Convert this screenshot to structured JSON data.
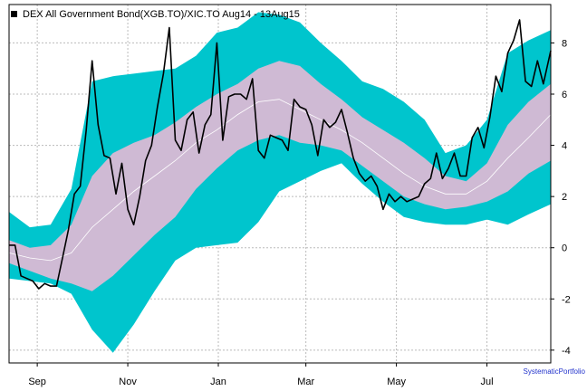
{
  "chart_data": {
    "type": "line",
    "title": "DEX All Government Bond(XGB.TO)/XIC.TO Aug14 - 13Aug15",
    "xlabel": "",
    "ylabel": "",
    "ylim": [
      -4.5,
      9.5
    ],
    "yticks": [
      -4,
      -2,
      0,
      2,
      4,
      6,
      8
    ],
    "x_tick_labels": [
      "Sep",
      "Nov",
      "Jan",
      "Mar",
      "May",
      "Jul"
    ],
    "x_tick_dates": [
      "2014-09-01",
      "2014-11-01",
      "2015-01-01",
      "2015-03-01",
      "2015-05-01",
      "2015-07-01"
    ],
    "xlim": [
      "2014-08-13",
      "2015-08-13"
    ],
    "grid": true,
    "legend_position": "top-left",
    "colors": {
      "outer_band": "#00c5cd",
      "inner_band": "#cfbad4",
      "mean_line": "#ffffff",
      "price_line": "#000000",
      "grid": "#bbbbbb",
      "watermark": "#2233cc"
    },
    "band_dates": [
      "2014-08-13",
      "2014-08-27",
      "2014-09-10",
      "2014-09-24",
      "2014-10-08",
      "2014-10-22",
      "2014-11-05",
      "2014-11-19",
      "2014-12-03",
      "2014-12-17",
      "2014-12-31",
      "2015-01-14",
      "2015-01-28",
      "2015-02-11",
      "2015-02-25",
      "2015-03-11",
      "2015-03-25",
      "2015-04-08",
      "2015-04-22",
      "2015-05-06",
      "2015-05-20",
      "2015-06-03",
      "2015-06-17",
      "2015-07-01",
      "2015-07-15",
      "2015-07-29",
      "2015-08-13"
    ],
    "bands": {
      "outer_upper": [
        1.4,
        0.8,
        0.9,
        2.3,
        6.5,
        6.7,
        6.8,
        6.9,
        7.0,
        7.5,
        8.4,
        8.6,
        9.2,
        9.1,
        8.8,
        8.0,
        7.3,
        6.5,
        6.2,
        5.7,
        5.0,
        3.7,
        4.0,
        5.0,
        7.6,
        8.1,
        8.5
      ],
      "inner_upper": [
        0.3,
        0.0,
        0.1,
        0.9,
        2.8,
        3.7,
        4.1,
        4.4,
        4.9,
        5.5,
        6.0,
        6.4,
        7.0,
        7.3,
        7.1,
        6.4,
        5.8,
        5.1,
        4.6,
        4.1,
        3.5,
        2.8,
        2.6,
        3.3,
        4.8,
        5.7,
        6.4
      ],
      "mean": [
        -0.2,
        -0.4,
        -0.5,
        -0.2,
        0.8,
        1.5,
        2.2,
        2.8,
        3.4,
        4.1,
        4.6,
        5.2,
        5.7,
        5.8,
        5.4,
        5.0,
        4.6,
        4.1,
        3.5,
        2.9,
        2.4,
        2.1,
        2.1,
        2.6,
        3.5,
        4.3,
        5.2
      ],
      "inner_lower": [
        -0.6,
        -0.9,
        -1.2,
        -1.4,
        -1.7,
        -1.1,
        -0.3,
        0.5,
        1.2,
        2.3,
        3.1,
        3.8,
        4.2,
        4.4,
        4.1,
        4.0,
        3.8,
        3.2,
        2.6,
        2.0,
        1.7,
        1.5,
        1.6,
        1.8,
        2.2,
        2.9,
        3.4
      ],
      "outer_lower": [
        -1.2,
        -1.3,
        -1.4,
        -1.8,
        -3.2,
        -4.1,
        -3.0,
        -1.7,
        -0.5,
        0.0,
        0.1,
        0.2,
        1.0,
        2.2,
        2.6,
        3.0,
        3.3,
        2.5,
        1.8,
        1.2,
        1.0,
        0.9,
        0.9,
        1.1,
        0.9,
        1.3,
        1.7
      ]
    },
    "series": [
      {
        "dates": [
          "2014-08-13",
          "2014-08-17",
          "2014-08-21",
          "2014-08-25",
          "2014-08-29",
          "2014-09-02",
          "2014-09-06",
          "2014-09-10",
          "2014-09-14",
          "2014-09-18",
          "2014-09-22",
          "2014-09-26",
          "2014-09-30",
          "2014-10-04",
          "2014-10-08",
          "2014-10-12",
          "2014-10-16",
          "2014-10-20",
          "2014-10-24",
          "2014-10-28",
          "2014-11-01",
          "2014-11-05",
          "2014-11-09",
          "2014-11-13",
          "2014-11-17",
          "2014-11-21",
          "2014-11-25",
          "2014-11-29",
          "2014-12-03",
          "2014-12-07",
          "2014-12-11",
          "2014-12-15",
          "2014-12-19",
          "2014-12-23",
          "2014-12-27",
          "2014-12-31",
          "2015-01-04",
          "2015-01-08",
          "2015-01-12",
          "2015-01-16",
          "2015-01-20",
          "2015-01-24",
          "2015-01-28",
          "2015-02-01",
          "2015-02-05",
          "2015-02-09",
          "2015-02-13",
          "2015-02-17",
          "2015-02-21",
          "2015-02-25",
          "2015-03-01",
          "2015-03-05",
          "2015-03-09",
          "2015-03-13",
          "2015-03-17",
          "2015-03-21",
          "2015-03-25",
          "2015-03-29",
          "2015-04-02",
          "2015-04-06",
          "2015-04-10",
          "2015-04-14",
          "2015-04-18",
          "2015-04-22",
          "2015-04-26",
          "2015-04-30",
          "2015-05-04",
          "2015-05-08",
          "2015-05-12",
          "2015-05-16",
          "2015-05-20",
          "2015-05-24",
          "2015-05-28",
          "2015-06-01",
          "2015-06-05",
          "2015-06-09",
          "2015-06-13",
          "2015-06-17",
          "2015-06-21",
          "2015-06-25",
          "2015-06-29",
          "2015-07-03",
          "2015-07-07",
          "2015-07-11",
          "2015-07-15",
          "2015-07-19",
          "2015-07-23",
          "2015-07-27",
          "2015-07-31",
          "2015-08-04",
          "2015-08-08",
          "2015-08-13"
        ],
        "values": [
          0.1,
          0.1,
          -1.1,
          -1.2,
          -1.3,
          -1.6,
          -1.4,
          -1.5,
          -1.5,
          -0.4,
          0.7,
          2.1,
          2.4,
          4.6,
          7.3,
          4.8,
          3.6,
          3.5,
          2.1,
          3.3,
          1.5,
          0.9,
          2.0,
          3.4,
          4.0,
          5.5,
          6.8,
          8.6,
          4.2,
          3.8,
          5.0,
          5.3,
          3.7,
          4.8,
          5.2,
          8.0,
          4.2,
          5.9,
          6.0,
          6.0,
          5.8,
          6.6,
          3.8,
          3.5,
          4.4,
          4.3,
          4.2,
          3.8,
          5.8,
          5.5,
          5.4,
          4.8,
          3.6,
          5.0,
          4.7,
          4.9,
          5.4,
          4.5,
          3.5,
          2.9,
          2.6,
          2.8,
          2.4,
          1.5,
          2.1,
          1.8,
          2.0,
          1.8,
          1.9,
          2.0,
          2.5,
          2.7,
          3.7,
          2.7,
          3.1,
          3.7,
          2.8,
          2.8,
          4.3,
          4.7,
          3.9,
          5.1,
          6.7,
          6.1,
          7.6,
          8.1,
          8.9,
          6.5,
          6.3,
          7.3,
          6.4,
          7.7
        ]
      }
    ]
  },
  "watermark": "SystematicPortfolio"
}
